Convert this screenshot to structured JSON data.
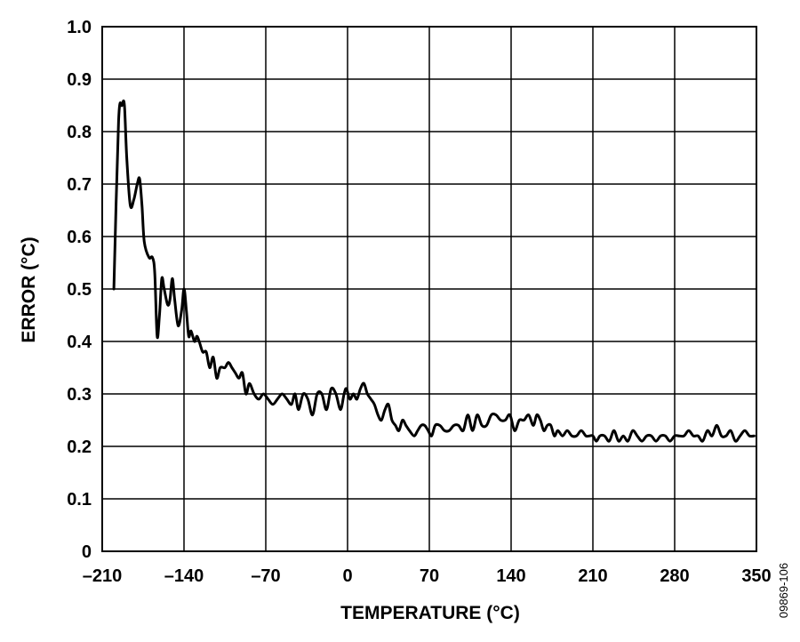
{
  "chart_data": {
    "type": "line",
    "title": "",
    "xlabel": "TEMPERATURE (°C)",
    "ylabel": "ERROR (°C)",
    "figure_code": "09869-106",
    "xlim": [
      -210,
      350
    ],
    "ylim": [
      0,
      1.0
    ],
    "xticks": [
      -210,
      -140,
      -70,
      0,
      70,
      140,
      210,
      280,
      350
    ],
    "xtick_labels": [
      "–210",
      "–140",
      "–70",
      "0",
      "70",
      "140",
      "210",
      "280",
      "350"
    ],
    "yticks": [
      0,
      0.1,
      0.2,
      0.3,
      0.4,
      0.5,
      0.6,
      0.7,
      0.8,
      0.9,
      1.0
    ],
    "ytick_labels": [
      "0",
      "0.1",
      "0.2",
      "0.3",
      "0.4",
      "0.5",
      "0.6",
      "0.7",
      "0.8",
      "0.9",
      "1.0"
    ],
    "grid": true,
    "line_color": "#000000",
    "series": [
      {
        "x": [
          -200,
          -196,
          -193,
          -191,
          -189,
          -186,
          -183,
          -180,
          -178,
          -176,
          -174,
          -170,
          -167,
          -165,
          -163,
          -161,
          -159,
          -157,
          -154,
          -152,
          -150,
          -148,
          -145,
          -142,
          -140,
          -138,
          -136,
          -134,
          -131,
          -129,
          -127,
          -124,
          -121,
          -118,
          -115,
          -112,
          -109,
          -105,
          -102,
          -99,
          -96,
          -93,
          -90,
          -87,
          -84,
          -80,
          -76,
          -72,
          -68,
          -64,
          -60,
          -56,
          -52,
          -48,
          -45,
          -42,
          -38,
          -34,
          -30,
          -26,
          -22,
          -18,
          -14,
          -10,
          -6,
          -3,
          -1,
          2,
          5,
          8,
          11,
          14,
          17,
          20,
          23,
          26,
          29,
          32,
          35,
          38,
          41,
          44,
          47,
          50,
          53,
          57,
          60,
          63,
          66,
          69,
          72,
          75,
          79,
          83,
          87,
          91,
          95,
          99,
          103,
          107,
          111,
          115,
          119,
          123,
          127,
          131,
          135,
          139,
          143,
          147,
          151,
          155,
          159,
          162,
          165,
          168,
          171,
          174,
          177,
          180,
          184,
          188,
          192,
          196,
          200,
          204,
          207,
          210,
          213,
          216,
          220,
          224,
          228,
          232,
          236,
          240,
          244,
          248,
          252,
          256,
          260,
          264,
          268,
          272,
          276,
          280,
          284,
          288,
          292,
          296,
          300,
          304,
          308,
          312,
          316,
          320,
          324,
          328,
          332,
          336,
          340,
          344,
          348
        ],
        "y": [
          0.5,
          0.82,
          0.85,
          0.85,
          0.75,
          0.66,
          0.67,
          0.7,
          0.71,
          0.66,
          0.59,
          0.56,
          0.56,
          0.53,
          0.41,
          0.45,
          0.52,
          0.5,
          0.47,
          0.48,
          0.52,
          0.48,
          0.43,
          0.46,
          0.5,
          0.46,
          0.41,
          0.42,
          0.4,
          0.41,
          0.4,
          0.38,
          0.38,
          0.35,
          0.37,
          0.33,
          0.35,
          0.35,
          0.36,
          0.35,
          0.34,
          0.33,
          0.34,
          0.3,
          0.32,
          0.3,
          0.29,
          0.3,
          0.29,
          0.28,
          0.29,
          0.3,
          0.29,
          0.28,
          0.3,
          0.27,
          0.3,
          0.29,
          0.26,
          0.3,
          0.3,
          0.27,
          0.31,
          0.3,
          0.27,
          0.3,
          0.31,
          0.29,
          0.3,
          0.29,
          0.31,
          0.32,
          0.3,
          0.29,
          0.28,
          0.26,
          0.25,
          0.27,
          0.28,
          0.25,
          0.24,
          0.23,
          0.25,
          0.24,
          0.23,
          0.22,
          0.23,
          0.24,
          0.24,
          0.23,
          0.22,
          0.24,
          0.24,
          0.23,
          0.23,
          0.24,
          0.24,
          0.23,
          0.26,
          0.23,
          0.26,
          0.24,
          0.24,
          0.26,
          0.26,
          0.25,
          0.25,
          0.26,
          0.23,
          0.25,
          0.25,
          0.26,
          0.24,
          0.26,
          0.25,
          0.23,
          0.24,
          0.24,
          0.22,
          0.23,
          0.22,
          0.23,
          0.22,
          0.22,
          0.23,
          0.22,
          0.22,
          0.22,
          0.21,
          0.22,
          0.22,
          0.21,
          0.23,
          0.21,
          0.22,
          0.21,
          0.23,
          0.22,
          0.21,
          0.22,
          0.22,
          0.21,
          0.22,
          0.22,
          0.21,
          0.22,
          0.22,
          0.22,
          0.23,
          0.22,
          0.22,
          0.21,
          0.23,
          0.22,
          0.24,
          0.22,
          0.22,
          0.23,
          0.21,
          0.22,
          0.23,
          0.22,
          0.22
        ]
      }
    ]
  }
}
